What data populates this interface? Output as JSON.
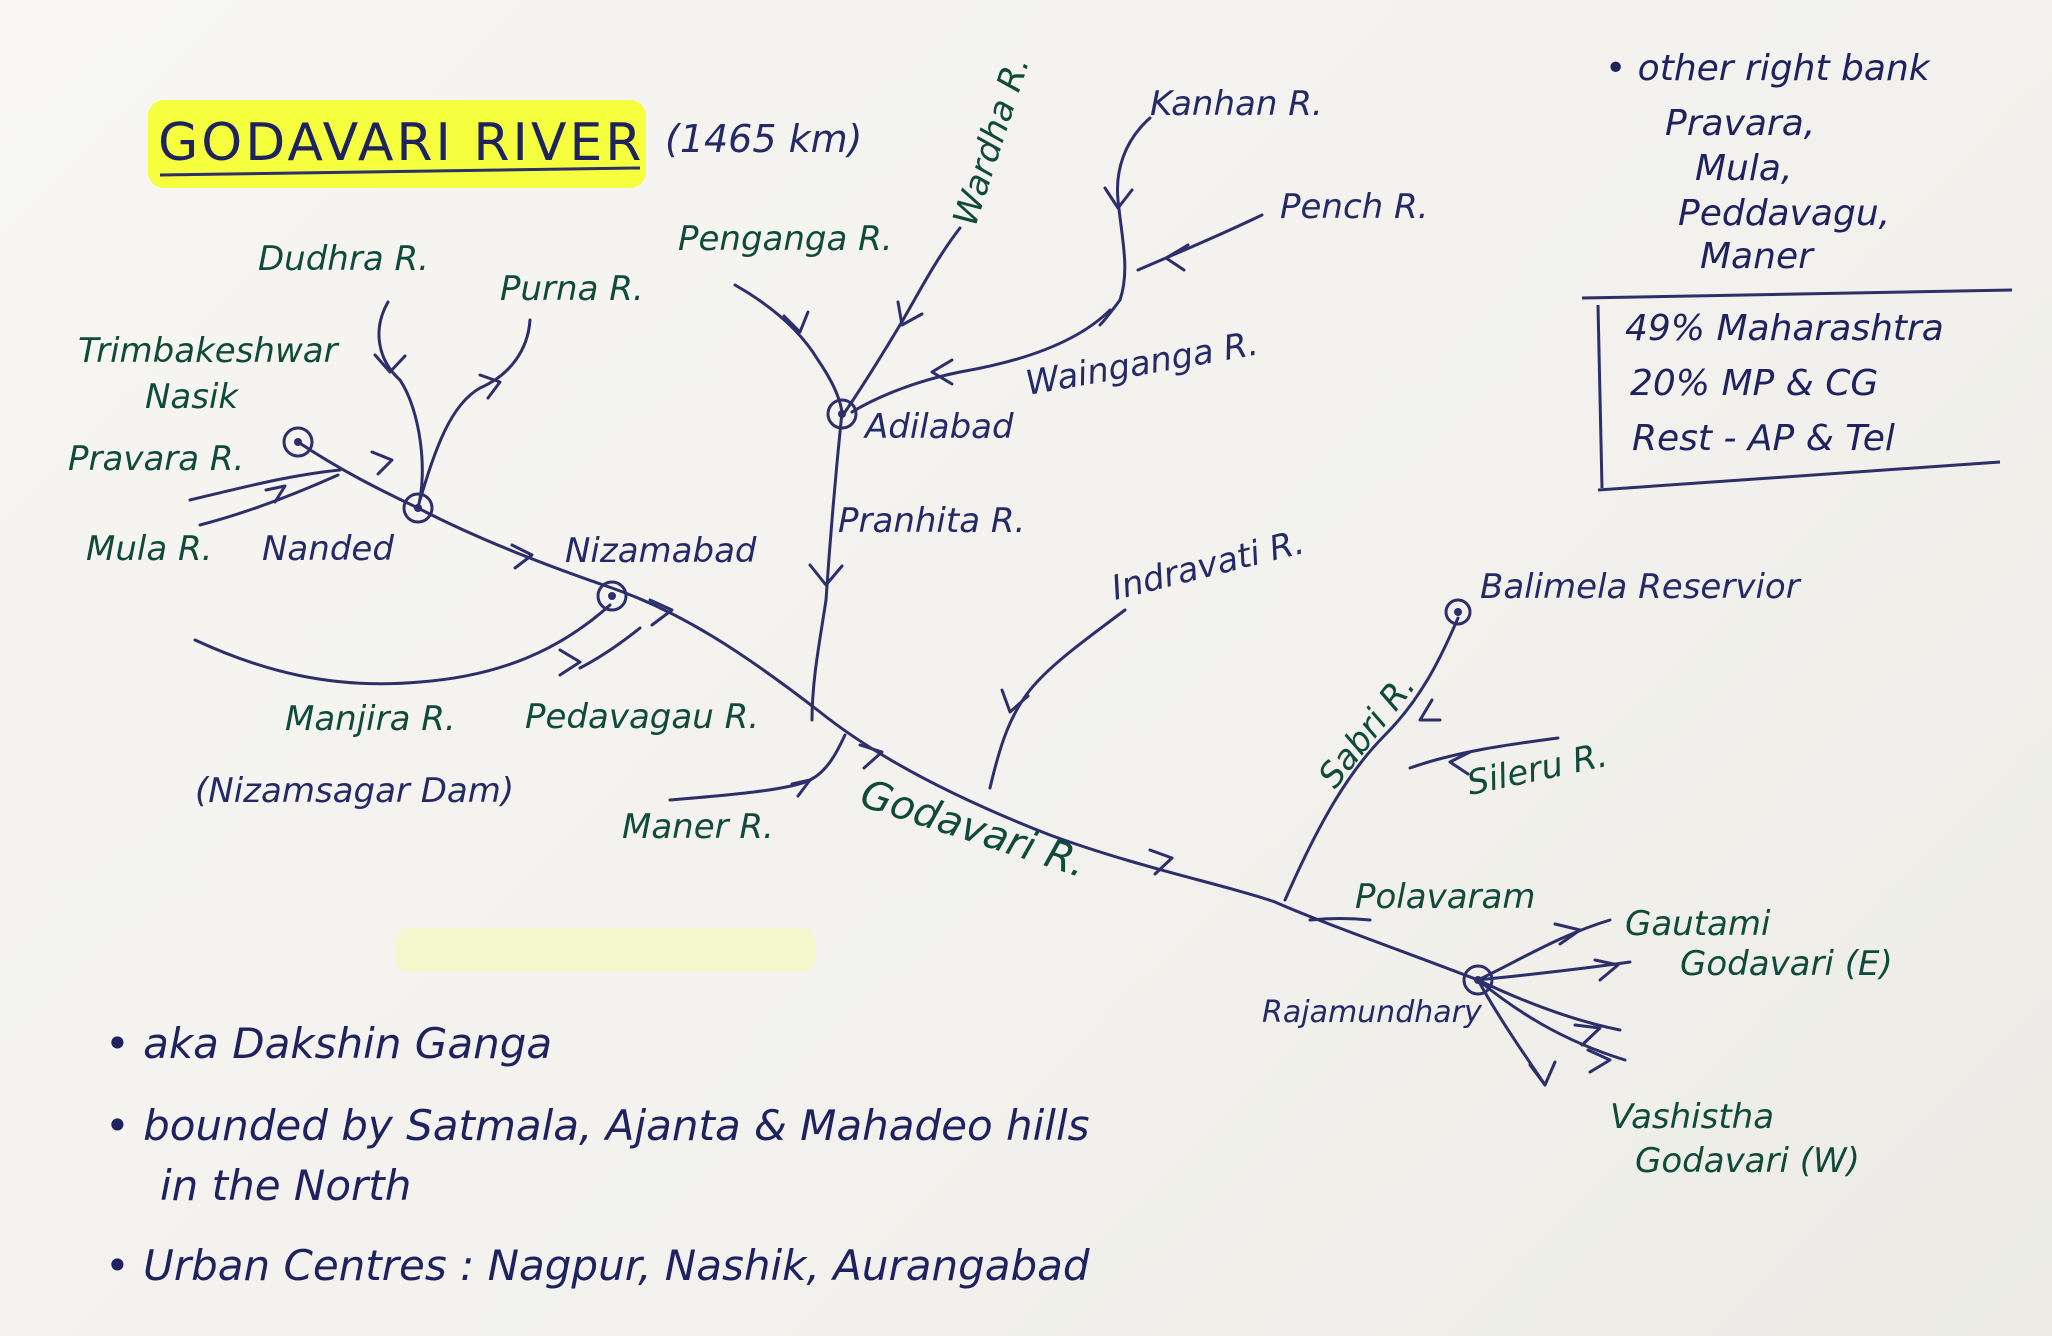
{
  "title": {
    "main": "GODAVARI RIVER",
    "length": "(1465 km)",
    "highlight_color": "#f4ff2e"
  },
  "colors": {
    "ink_blue": "#242a66",
    "ink_green": "#0f4a3b",
    "paper": "#f5f4f1"
  },
  "places": {
    "trimbakeshwar": "Trimbakeshwar",
    "nasik": "Nasik",
    "nanded": "Nanded",
    "nizamabad": "Nizamabad",
    "adilabad": "Adilabad",
    "polavaram": "Polavaram",
    "rajamundhary": "Rajamundhary",
    "balimela": "Balimela Reservior"
  },
  "rivers": {
    "pravara": "Pravara R.",
    "mula": "Mula R.",
    "dudhra": "Dudhra R.",
    "purna": "Purna R.",
    "manjira": "Manjira R.",
    "nizamsagar": "(Nizamsagar Dam)",
    "pedavagau": "Pedavagau R.",
    "maner": "Maner R.",
    "penganga": "Penganga R.",
    "wardha": "Wardha R.",
    "kanhan": "Kanhan R.",
    "pench": "Pench R.",
    "wainganga": "Wainganga R.",
    "pranhita": "Pranhita R.",
    "indravati": "Indravati R.",
    "sabri": "Sabri R.",
    "sileru": "Sileru R.",
    "godavari": "Godavari R.",
    "gautami_1": "Gautami",
    "gautami_2": "Godavari (E)",
    "vashistha_1": "Vashistha",
    "vashistha_2": "Godavari (W)"
  },
  "side_notes": {
    "right_bank_1": "• other right bank",
    "right_bank_items": [
      "Pravara,",
      "Mula,",
      "Peddavagu,",
      "Maner"
    ],
    "share_1": "49% Maharashtra",
    "share_2": "20% MP & CG",
    "share_3": "Rest - AP & Tel"
  },
  "bottom_notes": [
    "• aka Dakshin Ganga",
    "• bounded by Satmala, Ajanta & Mahadeo hills",
    "in the North",
    "• Urban Centres : Nagpur, Nashik, Aurangabad"
  ]
}
